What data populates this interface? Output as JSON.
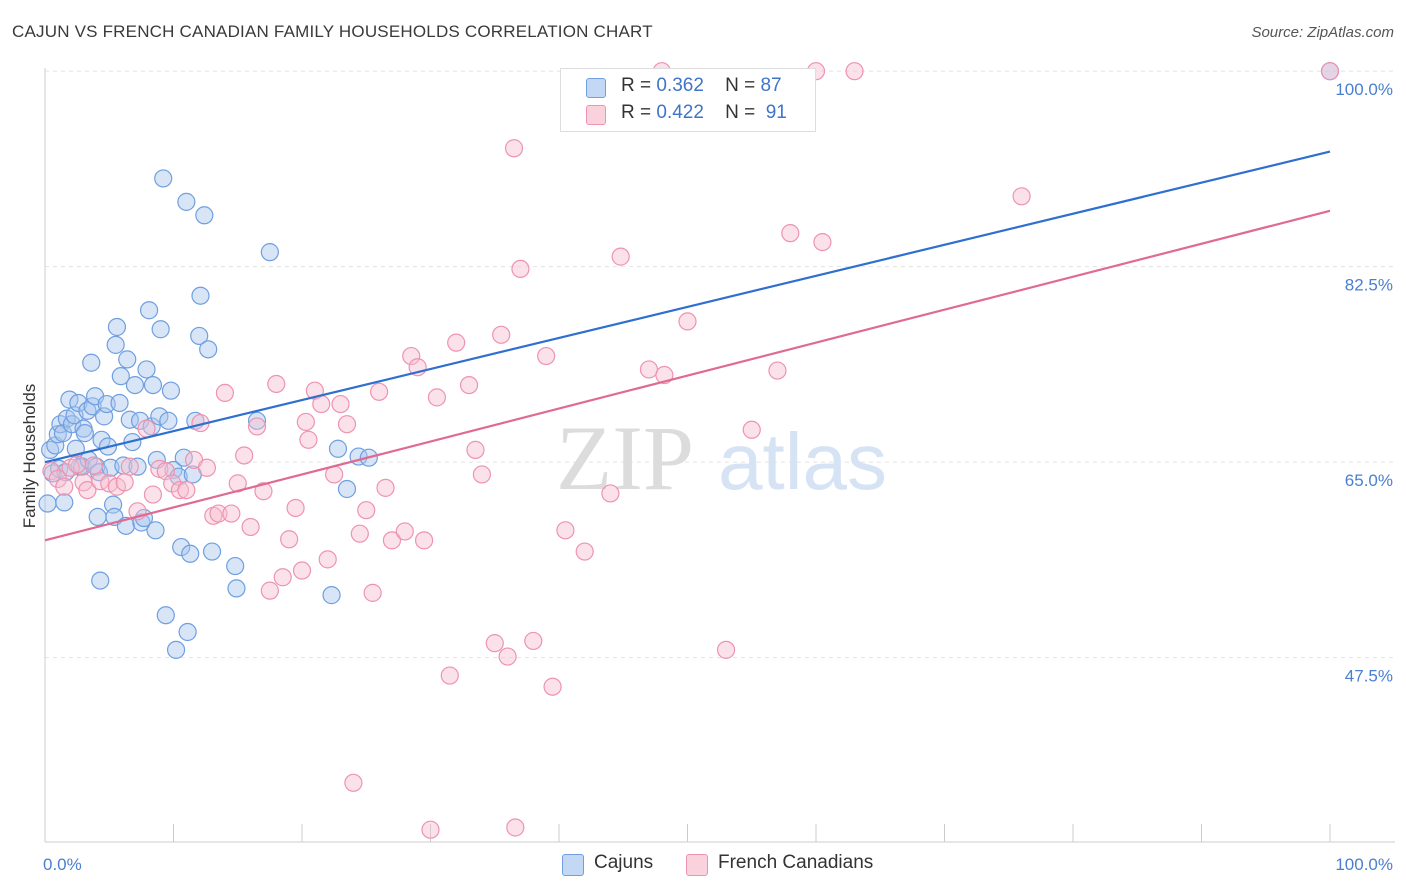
{
  "title": "CAJUN VS FRENCH CANADIAN FAMILY HOUSEHOLDS CORRELATION CHART",
  "source": "Source: ZipAtlas.com",
  "watermark": {
    "zip": "ZIP",
    "atlas": "atlas"
  },
  "legend": {
    "r_label": "R =",
    "n_label": "N =",
    "series": [
      {
        "name": "Cajuns",
        "r": "0.362",
        "n": "87"
      },
      {
        "name": "French Canadians",
        "r": "0.422",
        "n": "91"
      }
    ]
  },
  "colors": {
    "cajun_fill": "#a9c6ee",
    "cajun_stroke": "#6f9fe0",
    "cajun_line": "#2f6fd0",
    "french_fill": "#f7bfd0",
    "french_stroke": "#ee93b0",
    "french_line": "#e06a92",
    "grid": "#e3e3e3",
    "axis_label": "#4a7fd0"
  },
  "chart_data": {
    "type": "scatter",
    "title": "CAJUN VS FRENCH CANADIAN FAMILY HOUSEHOLDS CORRELATION CHART",
    "xlabel": "",
    "ylabel": "Family Households",
    "xlim": [
      0,
      100
    ],
    "ylim": [
      31,
      101
    ],
    "x_tick_labels": [
      "0.0%",
      "100.0%"
    ],
    "y_ticks": [
      47.5,
      65.0,
      82.5,
      100.0
    ],
    "y_tick_labels": [
      "47.5%",
      "65.0%",
      "82.5%",
      "100.0%"
    ],
    "grid": true,
    "legend_position": "top-center",
    "series": [
      {
        "name": "Cajuns",
        "r": 0.362,
        "n": 87,
        "trend": {
          "x": [
            0,
            100
          ],
          "y": [
            65.0,
            92.8
          ]
        },
        "points": [
          [
            0.2,
            61.3
          ],
          [
            0.4,
            66.1
          ],
          [
            0.6,
            64.0
          ],
          [
            0.8,
            66.5
          ],
          [
            1.0,
            67.5
          ],
          [
            1.1,
            64.4
          ],
          [
            1.2,
            68.4
          ],
          [
            1.4,
            67.6
          ],
          [
            1.5,
            61.4
          ],
          [
            1.6,
            64.1
          ],
          [
            1.7,
            68.9
          ],
          [
            1.9,
            70.6
          ],
          [
            2.1,
            68.4
          ],
          [
            2.3,
            69.2
          ],
          [
            2.4,
            66.2
          ],
          [
            2.6,
            70.3
          ],
          [
            2.7,
            64.6
          ],
          [
            2.9,
            64.6
          ],
          [
            3.0,
            68.0
          ],
          [
            3.1,
            67.6
          ],
          [
            3.3,
            69.6
          ],
          [
            3.4,
            65.2
          ],
          [
            3.6,
            73.9
          ],
          [
            3.7,
            70.0
          ],
          [
            3.9,
            70.9
          ],
          [
            4.0,
            64.6
          ],
          [
            4.2,
            64.1
          ],
          [
            4.1,
            60.1
          ],
          [
            4.3,
            54.4
          ],
          [
            4.4,
            67.0
          ],
          [
            4.6,
            69.1
          ],
          [
            4.8,
            70.2
          ],
          [
            4.9,
            66.4
          ],
          [
            5.1,
            64.5
          ],
          [
            5.3,
            61.2
          ],
          [
            5.5,
            75.5
          ],
          [
            5.4,
            60.1
          ],
          [
            5.6,
            77.1
          ],
          [
            5.8,
            70.3
          ],
          [
            5.9,
            72.7
          ],
          [
            6.1,
            64.7
          ],
          [
            6.3,
            59.3
          ],
          [
            6.4,
            74.2
          ],
          [
            6.6,
            68.8
          ],
          [
            6.8,
            66.8
          ],
          [
            7.0,
            71.9
          ],
          [
            7.2,
            64.6
          ],
          [
            7.4,
            68.7
          ],
          [
            7.5,
            59.6
          ],
          [
            7.7,
            60.0
          ],
          [
            7.9,
            73.3
          ],
          [
            8.1,
            78.6
          ],
          [
            8.3,
            68.2
          ],
          [
            8.4,
            71.9
          ],
          [
            8.6,
            58.9
          ],
          [
            8.7,
            65.2
          ],
          [
            8.9,
            69.1
          ],
          [
            9.0,
            76.9
          ],
          [
            9.2,
            90.4
          ],
          [
            9.4,
            51.3
          ],
          [
            9.6,
            68.7
          ],
          [
            9.8,
            71.4
          ],
          [
            10.0,
            64.3
          ],
          [
            10.2,
            48.2
          ],
          [
            10.4,
            63.7
          ],
          [
            10.6,
            57.4
          ],
          [
            10.8,
            65.4
          ],
          [
            11.0,
            88.3
          ],
          [
            11.1,
            49.8
          ],
          [
            11.3,
            56.8
          ],
          [
            11.5,
            63.9
          ],
          [
            11.7,
            68.7
          ],
          [
            12.0,
            76.3
          ],
          [
            12.1,
            79.9
          ],
          [
            12.4,
            87.1
          ],
          [
            12.7,
            75.1
          ],
          [
            13.0,
            57.0
          ],
          [
            14.8,
            55.7
          ],
          [
            14.9,
            53.7
          ],
          [
            16.5,
            68.7
          ],
          [
            17.5,
            83.8
          ],
          [
            22.3,
            53.1
          ],
          [
            22.8,
            66.2
          ],
          [
            23.5,
            62.6
          ],
          [
            24.4,
            65.5
          ],
          [
            25.2,
            65.4
          ],
          [
            100.0,
            100.0
          ]
        ]
      },
      {
        "name": "French Canadians",
        "r": 0.422,
        "n": 91,
        "trend": {
          "x": [
            0,
            100
          ],
          "y": [
            58.0,
            87.5
          ]
        },
        "points": [
          [
            0.5,
            64.2
          ],
          [
            1.0,
            63.5
          ],
          [
            1.5,
            62.8
          ],
          [
            2.0,
            64.5
          ],
          [
            2.5,
            64.8
          ],
          [
            3.0,
            63.2
          ],
          [
            3.3,
            62.5
          ],
          [
            3.8,
            64.7
          ],
          [
            4.3,
            63.3
          ],
          [
            5.0,
            63.1
          ],
          [
            5.6,
            62.8
          ],
          [
            6.2,
            63.2
          ],
          [
            6.6,
            64.6
          ],
          [
            7.2,
            60.6
          ],
          [
            7.9,
            68.0
          ],
          [
            8.4,
            62.1
          ],
          [
            8.9,
            64.4
          ],
          [
            9.4,
            64.2
          ],
          [
            9.9,
            63.1
          ],
          [
            10.5,
            62.5
          ],
          [
            11.0,
            62.5
          ],
          [
            11.6,
            65.2
          ],
          [
            12.1,
            68.5
          ],
          [
            12.6,
            64.5
          ],
          [
            13.1,
            60.2
          ],
          [
            13.5,
            60.4
          ],
          [
            14.0,
            71.2
          ],
          [
            14.5,
            60.4
          ],
          [
            15.0,
            63.1
          ],
          [
            15.5,
            65.6
          ],
          [
            16.0,
            59.2
          ],
          [
            16.5,
            68.2
          ],
          [
            17.0,
            62.4
          ],
          [
            17.5,
            53.5
          ],
          [
            18.0,
            72.0
          ],
          [
            18.5,
            54.7
          ],
          [
            19.0,
            58.1
          ],
          [
            19.5,
            60.9
          ],
          [
            20.0,
            55.3
          ],
          [
            20.5,
            67.0
          ],
          [
            21.0,
            71.4
          ],
          [
            21.5,
            70.2
          ],
          [
            22.0,
            56.3
          ],
          [
            22.5,
            63.9
          ],
          [
            23.0,
            70.2
          ],
          [
            23.5,
            68.4
          ],
          [
            24.0,
            36.3
          ],
          [
            24.5,
            58.6
          ],
          [
            25.0,
            60.7
          ],
          [
            25.5,
            53.3
          ],
          [
            26.0,
            71.3
          ],
          [
            26.5,
            62.7
          ],
          [
            27.0,
            58.0
          ],
          [
            28.0,
            58.8
          ],
          [
            28.5,
            74.5
          ],
          [
            29.0,
            73.5
          ],
          [
            29.5,
            58.0
          ],
          [
            30.0,
            32.1
          ],
          [
            30.5,
            70.8
          ],
          [
            31.5,
            45.9
          ],
          [
            32.0,
            75.7
          ],
          [
            33.0,
            71.9
          ],
          [
            33.5,
            66.1
          ],
          [
            34.0,
            63.9
          ],
          [
            35.0,
            48.8
          ],
          [
            35.5,
            76.4
          ],
          [
            36.0,
            47.6
          ],
          [
            36.5,
            93.1
          ],
          [
            36.6,
            32.3
          ],
          [
            37.0,
            82.3
          ],
          [
            38.0,
            49.0
          ],
          [
            39.0,
            74.5
          ],
          [
            39.5,
            44.9
          ],
          [
            40.5,
            58.9
          ],
          [
            42.0,
            57.0
          ],
          [
            44.0,
            62.2
          ],
          [
            44.8,
            83.4
          ],
          [
            47.0,
            73.3
          ],
          [
            48.0,
            100.0
          ],
          [
            48.2,
            72.8
          ],
          [
            50.0,
            77.6
          ],
          [
            53.0,
            48.2
          ],
          [
            55.0,
            67.9
          ],
          [
            57.0,
            73.2
          ],
          [
            58.0,
            85.5
          ],
          [
            60.0,
            100.0
          ],
          [
            60.5,
            84.7
          ],
          [
            76.0,
            88.8
          ],
          [
            63.0,
            100.0
          ],
          [
            20.3,
            68.6
          ],
          [
            100.0,
            100.0
          ]
        ]
      }
    ]
  }
}
